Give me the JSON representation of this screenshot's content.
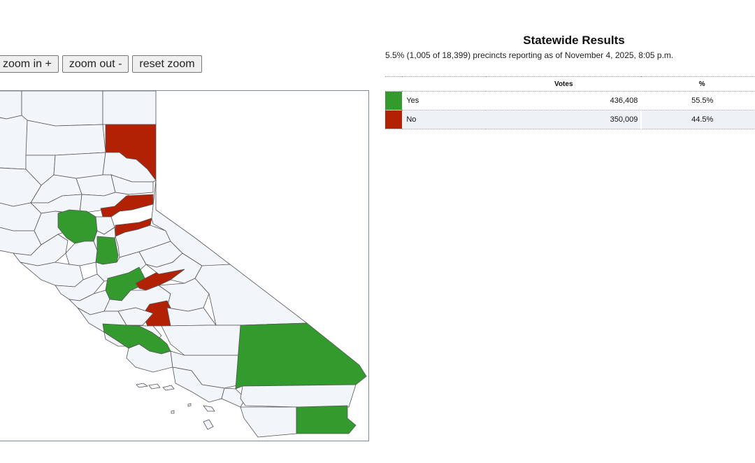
{
  "colors": {
    "yes": "#339a2e",
    "no": "#b32105",
    "no_results": "#f2f5f9"
  },
  "zoom": {
    "zoom_in": "zoom in +",
    "zoom_out": "zoom out -",
    "reset": "reset zoom"
  },
  "results": {
    "title": "Statewide Results",
    "reporting": "5.5% (1,005 of 18,399) precincts reporting as of November 4, 2025, 8:05 p.m.",
    "columns": {
      "choice": "",
      "votes": "Votes",
      "pct": "%"
    },
    "rows": [
      {
        "choice": "Yes",
        "votes": "436,408",
        "pct": "55.5%",
        "color": "#339a2e"
      },
      {
        "choice": "No",
        "votes": "350,009",
        "pct": "44.5%",
        "color": "#b32105"
      }
    ]
  }
}
